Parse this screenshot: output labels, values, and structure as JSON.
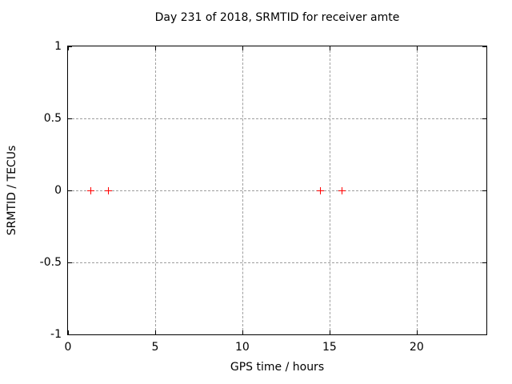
{
  "chart_data": {
    "type": "scatter",
    "title": "Day 231 of 2018, SRMTID for receiver amte",
    "xlabel": "GPS time / hours",
    "ylabel": "SRMTID / TECUs",
    "xlim": [
      0,
      24
    ],
    "ylim": [
      -1,
      1
    ],
    "xticks": [
      0,
      5,
      10,
      15,
      20
    ],
    "yticks": [
      1,
      0.5,
      0,
      -0.5,
      -1
    ],
    "xgrid": [
      5,
      10,
      15,
      20
    ],
    "ygrid": [
      0.5,
      0,
      -0.5
    ],
    "grid": "dashed",
    "grid_color": "#9e9e9e",
    "legend": "none",
    "background_color": "#ffffff",
    "border_color": "#000000",
    "series": [
      {
        "name": "SRMTID",
        "marker": "plus",
        "color": "#ff0000",
        "points": [
          {
            "x": 1.3,
            "y": 0
          },
          {
            "x": 2.3,
            "y": 0
          },
          {
            "x": 14.5,
            "y": 0
          },
          {
            "x": 15.7,
            "y": 0
          }
        ]
      }
    ]
  }
}
